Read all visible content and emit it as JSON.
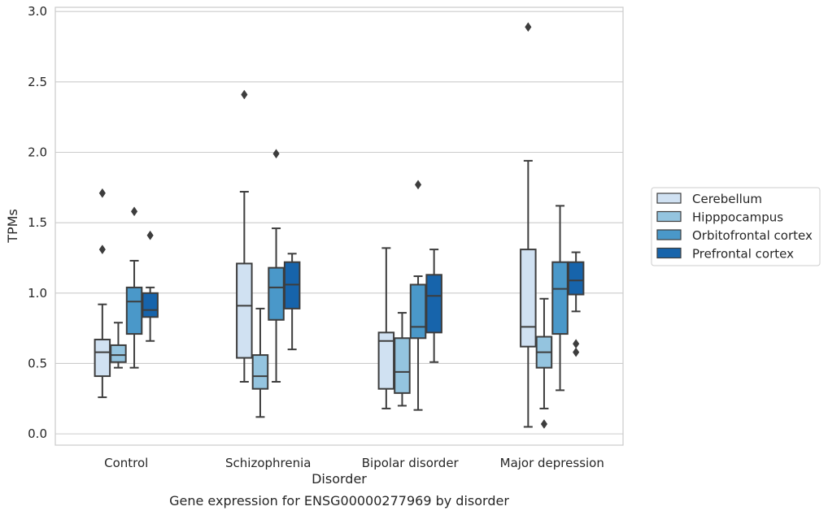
{
  "chart_data": {
    "type": "box",
    "title": "",
    "caption": "Gene expression for ENSG00000277969 by disorder",
    "xlabel": "Disorder",
    "ylabel": "TPMs",
    "ylim": [
      -0.08,
      3.03
    ],
    "yticks": [
      0.0,
      0.5,
      1.0,
      1.5,
      2.0,
      2.5,
      3.0
    ],
    "ytick_labels": [
      "0.0",
      "0.5",
      "1.0",
      "1.5",
      "2.0",
      "2.5",
      "3.0"
    ],
    "grid": "horizontal",
    "legend_position": "right",
    "categories": [
      "Control",
      "Schizophrenia",
      "Bipolar disorder",
      "Major depression"
    ],
    "series": [
      {
        "name": "Cerebellum",
        "color": "#d0e1f2",
        "boxes": [
          {
            "whislo": 0.26,
            "q1": 0.41,
            "med": 0.58,
            "q3": 0.67,
            "whishi": 0.92,
            "fliers": [
              1.31,
              1.71
            ]
          },
          {
            "whislo": 0.37,
            "q1": 0.54,
            "med": 0.91,
            "q3": 1.21,
            "whishi": 1.72,
            "fliers": [
              2.41
            ]
          },
          {
            "whislo": 0.18,
            "q1": 0.32,
            "med": 0.66,
            "q3": 0.72,
            "whishi": 1.32,
            "fliers": []
          },
          {
            "whislo": 0.05,
            "q1": 0.62,
            "med": 0.76,
            "q3": 1.31,
            "whishi": 1.94,
            "fliers": [
              2.89
            ]
          }
        ]
      },
      {
        "name": "Hipppocampus",
        "color": "#94c4df",
        "boxes": [
          {
            "whislo": 0.47,
            "q1": 0.51,
            "med": 0.56,
            "q3": 0.63,
            "whishi": 0.79,
            "fliers": []
          },
          {
            "whislo": 0.12,
            "q1": 0.32,
            "med": 0.41,
            "q3": 0.56,
            "whishi": 0.89,
            "fliers": []
          },
          {
            "whislo": 0.2,
            "q1": 0.29,
            "med": 0.44,
            "q3": 0.68,
            "whishi": 0.86,
            "fliers": []
          },
          {
            "whislo": 0.18,
            "q1": 0.47,
            "med": 0.58,
            "q3": 0.69,
            "whishi": 0.96,
            "fliers": [
              0.07
            ]
          }
        ]
      },
      {
        "name": "Orbitofrontal cortex",
        "color": "#4a98c9",
        "boxes": [
          {
            "whislo": 0.47,
            "q1": 0.71,
            "med": 0.94,
            "q3": 1.04,
            "whishi": 1.23,
            "fliers": [
              1.58
            ]
          },
          {
            "whislo": 0.37,
            "q1": 0.81,
            "med": 1.04,
            "q3": 1.18,
            "whishi": 1.46,
            "fliers": [
              1.99
            ]
          },
          {
            "whislo": 0.17,
            "q1": 0.68,
            "med": 0.76,
            "q3": 1.06,
            "whishi": 1.12,
            "fliers": [
              1.77
            ]
          },
          {
            "whislo": 0.31,
            "q1": 0.71,
            "med": 1.03,
            "q3": 1.22,
            "whishi": 1.62,
            "fliers": []
          }
        ]
      },
      {
        "name": "Prefrontal cortex",
        "color": "#1764ab",
        "boxes": [
          {
            "whislo": 0.66,
            "q1": 0.83,
            "med": 0.88,
            "q3": 1.0,
            "whishi": 1.04,
            "fliers": [
              1.41
            ]
          },
          {
            "whislo": 0.6,
            "q1": 0.89,
            "med": 1.06,
            "q3": 1.22,
            "whishi": 1.28,
            "fliers": []
          },
          {
            "whislo": 0.51,
            "q1": 0.72,
            "med": 0.98,
            "q3": 1.13,
            "whishi": 1.31,
            "fliers": []
          },
          {
            "whislo": 0.87,
            "q1": 0.99,
            "med": 1.09,
            "q3": 1.22,
            "whishi": 1.29,
            "fliers": [
              0.64,
              0.58
            ]
          }
        ]
      }
    ]
  }
}
